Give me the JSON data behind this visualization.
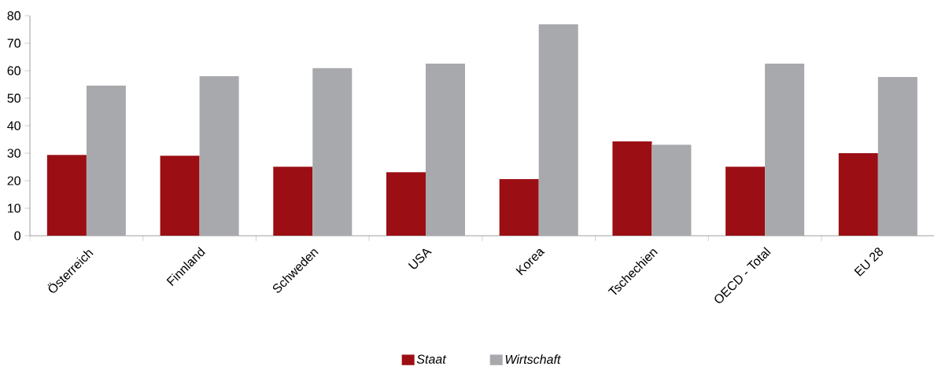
{
  "chart_data": {
    "type": "bar",
    "categories": [
      "Österreich",
      "Finnland",
      "Schweden",
      "USA",
      "Korea",
      "Tschechien",
      "OECD - Total",
      "EU 28"
    ],
    "series": [
      {
        "name": "Staat",
        "color": "#9b0f14",
        "values": [
          29.4,
          29.1,
          25.1,
          23.1,
          20.6,
          34.3,
          25.1,
          30.0
        ]
      },
      {
        "name": "Wirtschaft",
        "color": "#a8a9ad",
        "values": [
          54.6,
          58.0,
          60.9,
          62.6,
          76.9,
          33.1,
          62.6,
          57.7
        ]
      }
    ],
    "ylim": [
      0,
      80
    ],
    "yticks": [
      0,
      10,
      20,
      30,
      40,
      50,
      60,
      70,
      80
    ],
    "grid": false,
    "legend": "bottom"
  }
}
